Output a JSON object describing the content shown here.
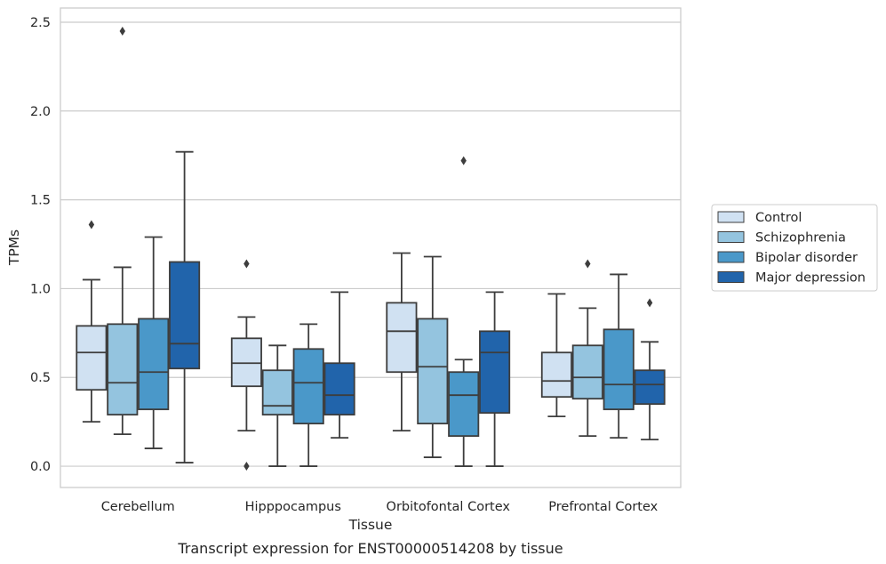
{
  "chart_data": {
    "type": "box",
    "xlabel": "Tissue",
    "ylabel": "TPMs",
    "caption": "Transcript expression for ENST00000514208 by tissue",
    "ylim": [
      -0.12,
      2.58
    ],
    "yticks": [
      0.0,
      0.5,
      1.0,
      1.5,
      2.0,
      2.5
    ],
    "ytick_labels": [
      "0.0",
      "0.5",
      "1.0",
      "1.5",
      "2.0",
      "2.5"
    ],
    "grid": "horizontal",
    "legend_position": "right",
    "categories": [
      "Cerebellum",
      "Hipppocampus",
      "Orbitofontal Cortex",
      "Prefrontal Cortex"
    ],
    "series": [
      {
        "name": "Control",
        "color": "#d0e1f2",
        "boxes": [
          {
            "whisker_low": 0.25,
            "q1": 0.43,
            "median": 0.64,
            "q3": 0.79,
            "whisker_high": 1.05,
            "outliers": [
              1.36
            ]
          },
          {
            "whisker_low": 0.2,
            "q1": 0.45,
            "median": 0.58,
            "q3": 0.72,
            "whisker_high": 0.84,
            "outliers": [
              1.14,
              0.0
            ]
          },
          {
            "whisker_low": 0.2,
            "q1": 0.53,
            "median": 0.76,
            "q3": 0.92,
            "whisker_high": 1.2,
            "outliers": []
          },
          {
            "whisker_low": 0.28,
            "q1": 0.39,
            "median": 0.48,
            "q3": 0.64,
            "whisker_high": 0.97,
            "outliers": []
          }
        ]
      },
      {
        "name": "Schizophrenia",
        "color": "#94c4df",
        "boxes": [
          {
            "whisker_low": 0.18,
            "q1": 0.29,
            "median": 0.47,
            "q3": 0.8,
            "whisker_high": 1.12,
            "outliers": [
              2.45
            ]
          },
          {
            "whisker_low": 0.0,
            "q1": 0.29,
            "median": 0.34,
            "q3": 0.54,
            "whisker_high": 0.68,
            "outliers": []
          },
          {
            "whisker_low": 0.05,
            "q1": 0.24,
            "median": 0.56,
            "q3": 0.83,
            "whisker_high": 1.18,
            "outliers": []
          },
          {
            "whisker_low": 0.17,
            "q1": 0.38,
            "median": 0.5,
            "q3": 0.68,
            "whisker_high": 0.89,
            "outliers": [
              1.14
            ]
          }
        ]
      },
      {
        "name": "Bipolar disorder",
        "color": "#4a98c9",
        "boxes": [
          {
            "whisker_low": 0.1,
            "q1": 0.32,
            "median": 0.53,
            "q3": 0.83,
            "whisker_high": 1.29,
            "outliers": []
          },
          {
            "whisker_low": 0.0,
            "q1": 0.24,
            "median": 0.47,
            "q3": 0.66,
            "whisker_high": 0.8,
            "outliers": []
          },
          {
            "whisker_low": 0.0,
            "q1": 0.17,
            "median": 0.4,
            "q3": 0.53,
            "whisker_high": 0.6,
            "outliers": [
              1.72
            ]
          },
          {
            "whisker_low": 0.16,
            "q1": 0.32,
            "median": 0.46,
            "q3": 0.77,
            "whisker_high": 1.08,
            "outliers": []
          }
        ]
      },
      {
        "name": "Major depression",
        "color": "#2164ab",
        "boxes": [
          {
            "whisker_low": 0.02,
            "q1": 0.55,
            "median": 0.69,
            "q3": 1.15,
            "whisker_high": 1.77,
            "outliers": []
          },
          {
            "whisker_low": 0.16,
            "q1": 0.29,
            "median": 0.4,
            "q3": 0.58,
            "whisker_high": 0.98,
            "outliers": []
          },
          {
            "whisker_low": 0.0,
            "q1": 0.3,
            "median": 0.64,
            "q3": 0.76,
            "whisker_high": 0.98,
            "outliers": []
          },
          {
            "whisker_low": 0.15,
            "q1": 0.35,
            "median": 0.46,
            "q3": 0.54,
            "whisker_high": 0.7,
            "outliers": [
              0.92
            ]
          }
        ]
      }
    ]
  }
}
